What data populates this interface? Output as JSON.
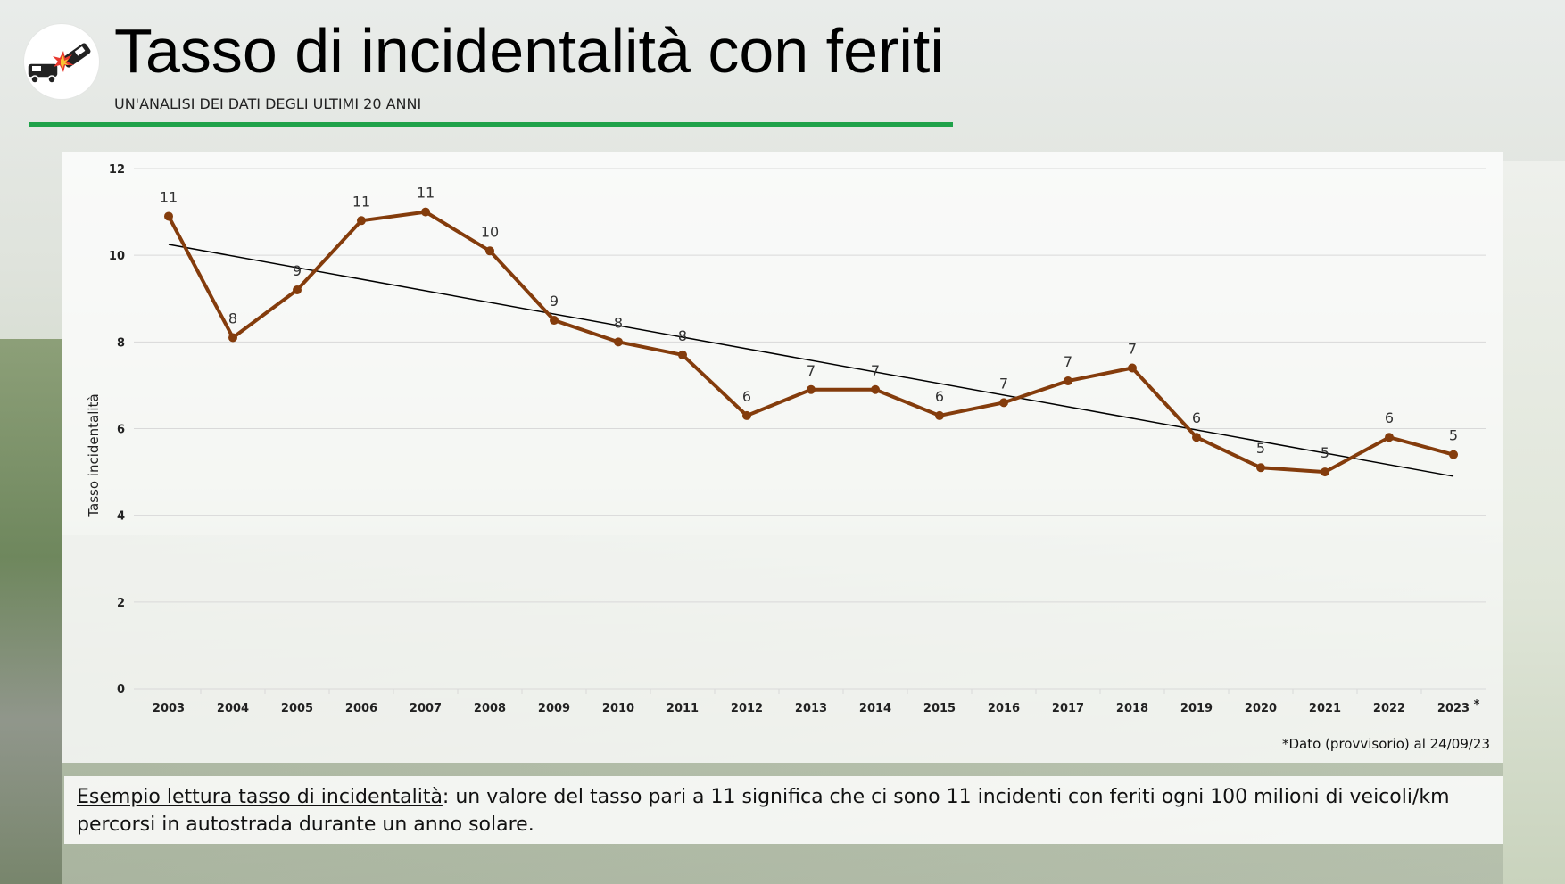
{
  "header": {
    "title": "Tasso di incidentalità con feriti",
    "subtitle": "UN'ANALISI DEI DATI DEGLI ULTIMI 20 ANNI",
    "logo_icon": "car-crash-icon"
  },
  "colors": {
    "accent_rule": "#1fa24a",
    "series_line": "#843c0c",
    "trend_line": "#000000",
    "grid": "#d9d9d9"
  },
  "chart_data": {
    "type": "line",
    "title": "",
    "xlabel": "",
    "ylabel": "Tasso incidentalità",
    "ylim": [
      0,
      12
    ],
    "yticks": [
      "0",
      "2",
      "4",
      "6",
      "8",
      "10",
      "12"
    ],
    "grid": "horizontal",
    "legend": "none",
    "categories": [
      "2003",
      "2004",
      "2005",
      "2006",
      "2007",
      "2008",
      "2009",
      "2010",
      "2011",
      "2012",
      "2013",
      "2014",
      "2015",
      "2016",
      "2017",
      "2018",
      "2019",
      "2020",
      "2021",
      "2022",
      "2023"
    ],
    "last_category_marker": "*",
    "series": [
      {
        "values": [
          10.9,
          8.1,
          9.2,
          10.8,
          11.0,
          10.1,
          8.5,
          8.0,
          7.7,
          6.3,
          6.9,
          6.9,
          6.3,
          6.6,
          7.1,
          7.4,
          5.8,
          5.1,
          5.0,
          5.8,
          5.4
        ],
        "data_labels": [
          "11",
          "8",
          "9",
          "11",
          "11",
          "10",
          "9",
          "8",
          "8",
          "6",
          "7",
          "7",
          "6",
          "7",
          "7",
          "7",
          "6",
          "5",
          "5",
          "6",
          "5"
        ]
      }
    ],
    "trendline": {
      "type": "linear",
      "start": 10.25,
      "end": 4.9
    }
  },
  "footnote": "*Dato (provvisorio) al 24/09/23",
  "explanation": {
    "lead": "Esempio lettura tasso di incidentalità",
    "text": ": un valore del tasso pari a 11 significa che ci sono 11 incidenti con feriti ogni 100 milioni di veicoli/km percorsi in autostrada durante un anno solare."
  }
}
